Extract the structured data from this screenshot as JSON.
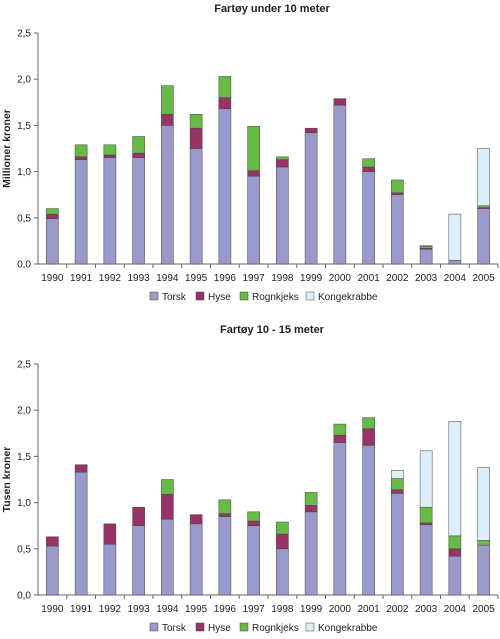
{
  "chart_data": [
    {
      "type": "bar",
      "stacked": true,
      "title": "Fartøy under 10 meter",
      "ylabel": "Millioner kroner",
      "xlabel": "",
      "ylim": [
        0,
        2.5
      ],
      "ytick_labels": [
        "0,0",
        "0,5",
        "1,0",
        "1,5",
        "2,0",
        "2,5"
      ],
      "categories": [
        "1990",
        "1991",
        "1992",
        "1993",
        "1994",
        "1995",
        "1996",
        "1997",
        "1998",
        "1999",
        "2000",
        "2001",
        "2002",
        "2003",
        "2004",
        "2005"
      ],
      "series": [
        {
          "name": "Torsk",
          "color": "#9999cc",
          "values": [
            0.49,
            1.13,
            1.15,
            1.15,
            1.5,
            1.25,
            1.68,
            0.95,
            1.05,
            1.42,
            1.72,
            1.0,
            0.75,
            0.16,
            0.04,
            0.6
          ]
        },
        {
          "name": "Hyse",
          "color": "#993366",
          "values": [
            0.05,
            0.03,
            0.03,
            0.05,
            0.12,
            0.22,
            0.12,
            0.06,
            0.08,
            0.05,
            0.07,
            0.05,
            0.02,
            0.01,
            0.0,
            0.01
          ]
        },
        {
          "name": "Rognkjeks",
          "color": "#66bb44",
          "values": [
            0.06,
            0.13,
            0.11,
            0.18,
            0.31,
            0.15,
            0.23,
            0.48,
            0.03,
            0.0,
            0.0,
            0.09,
            0.14,
            0.02,
            0.0,
            0.02
          ]
        },
        {
          "name": "Kongekrabbe",
          "color": "#ddeef8",
          "values": [
            0,
            0,
            0,
            0,
            0,
            0,
            0,
            0,
            0,
            0,
            0,
            0,
            0,
            0.01,
            0.5,
            0.62
          ]
        }
      ],
      "legend_position": "bottom",
      "grid": false
    },
    {
      "type": "bar",
      "stacked": true,
      "title": "Fartøy 10 - 15 meter",
      "ylabel": "Tusen kroner",
      "xlabel": "",
      "ylim": [
        0,
        2.5
      ],
      "ytick_labels": [
        "0,0",
        "0,5",
        "1,0",
        "1,5",
        "2,0",
        "2,5"
      ],
      "categories": [
        "1990",
        "1991",
        "1992",
        "1993",
        "1994",
        "1995",
        "1996",
        "1997",
        "1998",
        "1999",
        "2000",
        "2001",
        "2002",
        "2003",
        "2004",
        "2005"
      ],
      "series": [
        {
          "name": "Torsk",
          "color": "#9999cc",
          "values": [
            0.53,
            1.33,
            0.55,
            0.75,
            0.82,
            0.77,
            0.85,
            0.75,
            0.5,
            0.9,
            1.65,
            1.62,
            1.1,
            0.76,
            0.42,
            0.54
          ]
        },
        {
          "name": "Hyse",
          "color": "#993366",
          "values": [
            0.1,
            0.08,
            0.22,
            0.2,
            0.27,
            0.1,
            0.03,
            0.05,
            0.16,
            0.07,
            0.08,
            0.18,
            0.04,
            0.02,
            0.08,
            0.0
          ]
        },
        {
          "name": "Rognkjeks",
          "color": "#66bb44",
          "values": [
            0,
            0,
            0,
            0,
            0.16,
            0.0,
            0.15,
            0.1,
            0.13,
            0.14,
            0.12,
            0.12,
            0.12,
            0.17,
            0.14,
            0.05
          ]
        },
        {
          "name": "Kongekrabbe",
          "color": "#ddeef8",
          "values": [
            0,
            0,
            0,
            0,
            0,
            0,
            0,
            0,
            0,
            0,
            0,
            0,
            0.09,
            0.61,
            1.24,
            0.79
          ]
        }
      ],
      "legend_position": "bottom",
      "grid": false
    }
  ]
}
